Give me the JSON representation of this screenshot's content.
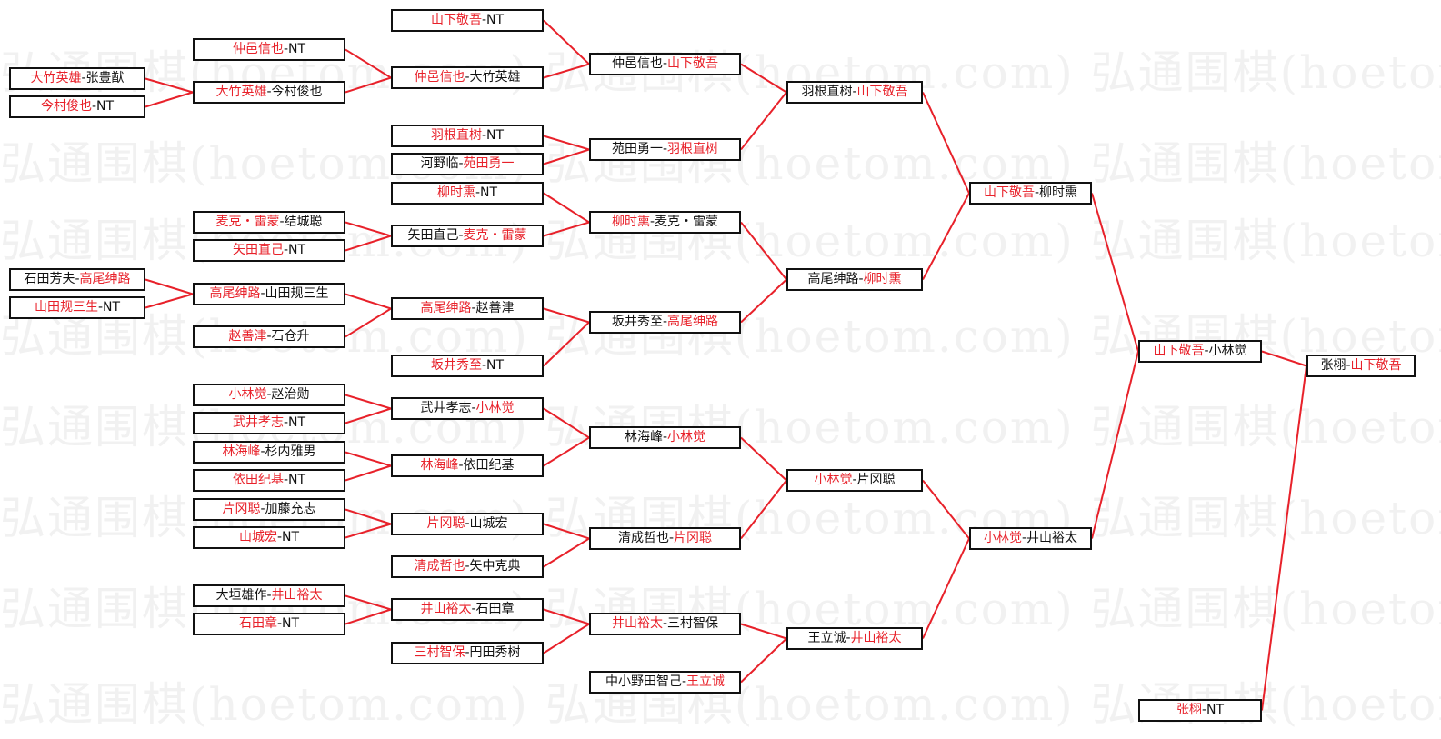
{
  "watermark": "弘通围棋(hoetom.com) 弘通围棋(hoetom.com) 弘通围棋(hoetom.com)",
  "colors": {
    "winner": "#e8212a",
    "line": "#e8212a",
    "border": "#111111"
  },
  "separator": "-",
  "matches": [
    {
      "a": "大竹英雄",
      "b": "张豊猷",
      "win": 0
    },
    {
      "a": "今村俊也",
      "b": "NT",
      "win": 0
    },
    {
      "a": "石田芳夫",
      "b": "高尾绅路",
      "win": 1
    },
    {
      "a": "山田规三生",
      "b": "NT",
      "win": 0
    },
    {
      "a": "仲邑信也",
      "b": "NT",
      "win": 0
    },
    {
      "a": "大竹英雄",
      "b": "今村俊也",
      "win": 0
    },
    {
      "a": "麦克・雷蒙",
      "b": "结城聪",
      "win": 0
    },
    {
      "a": "矢田直己",
      "b": "NT",
      "win": 0
    },
    {
      "a": "高尾绅路",
      "b": "山田规三生",
      "win": 0
    },
    {
      "a": "赵善津",
      "b": "石仓升",
      "win": 0
    },
    {
      "a": "小林觉",
      "b": "赵治勋",
      "win": 0
    },
    {
      "a": "武井孝志",
      "b": "NT",
      "win": 0
    },
    {
      "a": "林海峰",
      "b": "杉内雅男",
      "win": 0
    },
    {
      "a": "依田纪基",
      "b": "NT",
      "win": 0
    },
    {
      "a": "片冈聪",
      "b": "加藤充志",
      "win": 0
    },
    {
      "a": "山城宏",
      "b": "NT",
      "win": 0
    },
    {
      "a": "大垣雄作",
      "b": "井山裕太",
      "win": 1
    },
    {
      "a": "石田章",
      "b": "NT",
      "win": 0
    },
    {
      "a": "山下敬吾",
      "b": "NT",
      "win": 0
    },
    {
      "a": "仲邑信也",
      "b": "大竹英雄",
      "win": 0
    },
    {
      "a": "羽根直树",
      "b": "NT",
      "win": 0
    },
    {
      "a": "河野临",
      "b": "苑田勇一",
      "win": 1
    },
    {
      "a": "柳时熏",
      "b": "NT",
      "win": 0
    },
    {
      "a": "矢田直己",
      "b": "麦克・雷蒙",
      "win": 1
    },
    {
      "a": "高尾绅路",
      "b": "赵善津",
      "win": 0
    },
    {
      "a": "坂井秀至",
      "b": "NT",
      "win": 0
    },
    {
      "a": "武井孝志",
      "b": "小林觉",
      "win": 1
    },
    {
      "a": "林海峰",
      "b": "依田纪基",
      "win": 0
    },
    {
      "a": "片冈聪",
      "b": "山城宏",
      "win": 0
    },
    {
      "a": "清成哲也",
      "b": "矢中克典",
      "win": 0
    },
    {
      "a": "井山裕太",
      "b": "石田章",
      "win": 0
    },
    {
      "a": "三村智保",
      "b": "円田秀树",
      "win": 0
    },
    {
      "a": "仲邑信也",
      "b": "山下敬吾",
      "win": 1
    },
    {
      "a": "苑田勇一",
      "b": "羽根直树",
      "win": 1
    },
    {
      "a": "柳时熏",
      "b": "麦克・雷蒙",
      "win": 0
    },
    {
      "a": "坂井秀至",
      "b": "高尾绅路",
      "win": 1
    },
    {
      "a": "林海峰",
      "b": "小林觉",
      "win": 1
    },
    {
      "a": "清成哲也",
      "b": "片冈聪",
      "win": 1
    },
    {
      "a": "井山裕太",
      "b": "三村智保",
      "win": 0
    },
    {
      "a": "中小野田智己",
      "b": "王立诚",
      "win": 1
    },
    {
      "a": "羽根直树",
      "b": "山下敬吾",
      "win": 1
    },
    {
      "a": "高尾绅路",
      "b": "柳时熏",
      "win": 1
    },
    {
      "a": "小林觉",
      "b": "片冈聪",
      "win": 0
    },
    {
      "a": "王立诚",
      "b": "井山裕太",
      "win": 1
    },
    {
      "a": "山下敬吾",
      "b": "柳时熏",
      "win": 0
    },
    {
      "a": "小林觉",
      "b": "井山裕太",
      "win": 0
    },
    {
      "a": "山下敬吾",
      "b": "小林觉",
      "win": 0
    },
    {
      "a": "张栩",
      "b": "NT",
      "win": 0
    },
    {
      "a": "张栩",
      "b": "山下敬吾",
      "win": 1
    }
  ],
  "advances": [
    [
      0,
      5
    ],
    [
      1,
      5
    ],
    [
      4,
      19
    ],
    [
      5,
      19
    ],
    [
      2,
      8
    ],
    [
      3,
      8
    ],
    [
      8,
      24
    ],
    [
      9,
      24
    ],
    [
      6,
      23
    ],
    [
      7,
      23
    ],
    [
      10,
      26
    ],
    [
      11,
      26
    ],
    [
      12,
      27
    ],
    [
      13,
      27
    ],
    [
      14,
      28
    ],
    [
      15,
      28
    ],
    [
      16,
      30
    ],
    [
      17,
      30
    ],
    [
      18,
      32
    ],
    [
      19,
      32
    ],
    [
      20,
      33
    ],
    [
      21,
      33
    ],
    [
      22,
      34
    ],
    [
      23,
      34
    ],
    [
      24,
      35
    ],
    [
      25,
      35
    ],
    [
      26,
      36
    ],
    [
      27,
      36
    ],
    [
      28,
      37
    ],
    [
      29,
      37
    ],
    [
      30,
      38
    ],
    [
      31,
      38
    ],
    [
      32,
      40
    ],
    [
      33,
      40
    ],
    [
      34,
      41
    ],
    [
      35,
      41
    ],
    [
      36,
      42
    ],
    [
      37,
      42
    ],
    [
      38,
      43
    ],
    [
      39,
      43
    ],
    [
      40,
      44
    ],
    [
      41,
      44
    ],
    [
      42,
      45
    ],
    [
      43,
      45
    ],
    [
      44,
      46
    ],
    [
      45,
      46
    ],
    [
      46,
      48
    ],
    [
      47,
      48
    ]
  ]
}
